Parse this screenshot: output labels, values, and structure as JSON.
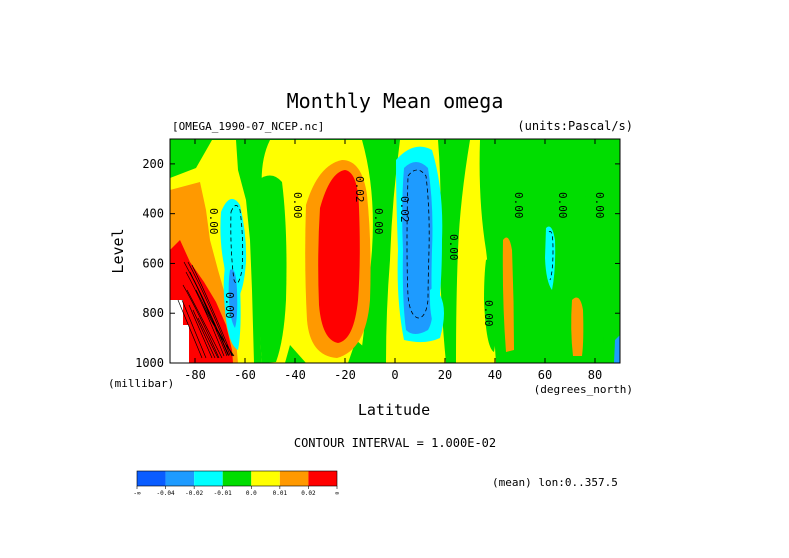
{
  "chart_data": {
    "type": "heatmap",
    "title": "Monthly Mean omega",
    "subtitle_left": "[OMEGA_1990-07_NCEP.nc]",
    "subtitle_right": "(units:Pascal/s)",
    "xlabel": "Latitude",
    "x_units": "(degrees_north)",
    "ylabel": "Level",
    "y_units": "(millibar)",
    "xlim": [
      -90,
      90
    ],
    "ylim": [
      1000,
      100
    ],
    "x_ticks": [
      -80,
      -60,
      -40,
      -20,
      0,
      20,
      40,
      60,
      80
    ],
    "x_tick_labels": [
      "-80",
      "-60",
      "-40",
      "-20",
      "0",
      "20",
      "40",
      "60",
      "80"
    ],
    "y_ticks": [
      200,
      400,
      600,
      800,
      1000
    ],
    "y_tick_labels": [
      "200",
      "400",
      "600",
      "800",
      "1000"
    ],
    "contour_interval_text": "CONTOUR INTERVAL = 1.000E-02",
    "average_note": "(mean) lon:0..357.5",
    "contour_labels": [
      "0.00",
      "0.00",
      "0.02",
      "0.00",
      "0.02",
      "0.00",
      "0.00",
      "0.00",
      "0.00",
      "0.00",
      "0.00"
    ],
    "colorbar": {
      "colors": [
        "#0a5cff",
        "#1e9bff",
        "#00ffff",
        "#00dd00",
        "#ffff00",
        "#ff9900",
        "#ff0000"
      ],
      "tick_labels": [
        "-∞",
        "-0.04",
        "-0.02",
        "-0.01",
        "0.0",
        "0.01",
        "0.02",
        "∞"
      ]
    }
  }
}
